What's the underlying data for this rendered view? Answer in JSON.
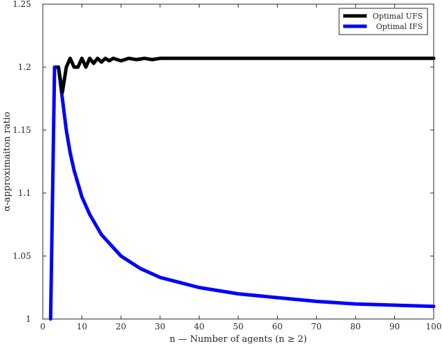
{
  "chart_data": {
    "type": "line",
    "xlabel": "n — Number of agents (n ≥ 2)",
    "ylabel": "α-approximaiton ratio",
    "xlim": [
      0,
      100
    ],
    "ylim": [
      1,
      1.25
    ],
    "x_ticks": [
      "0",
      "10",
      "20",
      "30",
      "40",
      "50",
      "60",
      "70",
      "80",
      "90",
      "100"
    ],
    "y_ticks": [
      "1",
      "1.05",
      "1.1",
      "1.15",
      "1.2",
      "1.25"
    ],
    "grid": false,
    "legend_position": "top-right",
    "series": [
      {
        "name": "Optimal UFS",
        "color": "#000000",
        "x": [
          4,
          5,
          6,
          7,
          8,
          9,
          10,
          11,
          12,
          13,
          14,
          15,
          16,
          17,
          18,
          20,
          22,
          24,
          26,
          28,
          30,
          35,
          40,
          50,
          60,
          70,
          80,
          90,
          100
        ],
        "y": [
          1.2,
          1.18,
          1.2,
          1.207,
          1.2,
          1.2,
          1.207,
          1.2,
          1.207,
          1.203,
          1.207,
          1.204,
          1.207,
          1.205,
          1.207,
          1.205,
          1.207,
          1.206,
          1.207,
          1.206,
          1.207,
          1.207,
          1.207,
          1.207,
          1.207,
          1.207,
          1.207,
          1.207,
          1.207
        ]
      },
      {
        "name": "Optimal IFS",
        "color": "#0000ff",
        "x": [
          2,
          3,
          4,
          5,
          6,
          7,
          8,
          10,
          12,
          15,
          20,
          25,
          30,
          40,
          50,
          60,
          70,
          80,
          90,
          100
        ],
        "y": [
          1.0,
          1.2,
          1.2,
          1.175,
          1.15,
          1.132,
          1.118,
          1.097,
          1.083,
          1.067,
          1.05,
          1.04,
          1.033,
          1.025,
          1.02,
          1.017,
          1.014,
          1.012,
          1.011,
          1.01
        ]
      }
    ]
  }
}
